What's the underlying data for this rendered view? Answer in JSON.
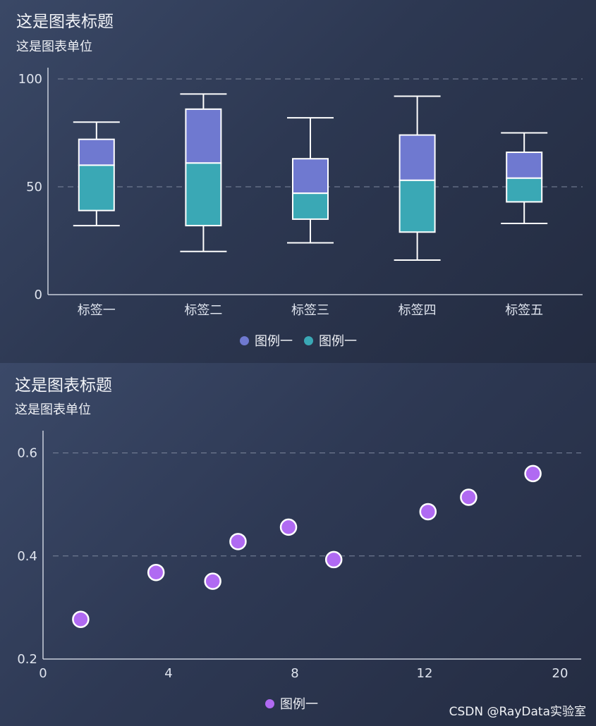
{
  "watermark": "CSDN @RayData实验室",
  "chart_data": [
    {
      "type": "boxplot",
      "title": "这是图表标题",
      "subtitle": "这是图表单位",
      "categories": [
        "标签一",
        "标签二",
        "标签三",
        "标签四",
        "标签五"
      ],
      "ylim": [
        0,
        100
      ],
      "yticks": [
        "0",
        "50",
        "100"
      ],
      "grid": true,
      "legend_position": "bottom",
      "colors": {
        "upper": "#6f79d0",
        "lower": "#3aa8b5",
        "stroke": "#ffffff"
      },
      "series": [
        {
          "name": "图例一",
          "part": "upper"
        },
        {
          "name": "图例一",
          "part": "lower"
        }
      ],
      "boxes": [
        {
          "min": 32,
          "q1": 39,
          "median": 60,
          "q3": 72,
          "max": 80
        },
        {
          "min": 20,
          "q1": 32,
          "median": 61,
          "q3": 86,
          "max": 93
        },
        {
          "min": 24,
          "q1": 35,
          "median": 47,
          "q3": 63,
          "max": 82
        },
        {
          "min": 16,
          "q1": 29,
          "median": 53,
          "q3": 74,
          "max": 92
        },
        {
          "min": 33,
          "q1": 43,
          "median": 54,
          "q3": 66,
          "max": 75
        }
      ]
    },
    {
      "type": "scatter",
      "title": "这是图表标题",
      "subtitle": "这是图表单位",
      "xticks": [
        "0",
        "4",
        "8",
        "12",
        "20"
      ],
      "yticks": [
        "0.2",
        "0.4",
        "0.6"
      ],
      "ylim": [
        0.2,
        0.62
      ],
      "grid": true,
      "legend_position": "bottom",
      "colors": {
        "point": "#b06af2",
        "stroke": "#ffffff"
      },
      "series": [
        {
          "name": "图例一",
          "points": [
            {
              "x": 1.2,
              "y": 0.277
            },
            {
              "x": 3.6,
              "y": 0.368
            },
            {
              "x": 5.4,
              "y": 0.351
            },
            {
              "x": 6.2,
              "y": 0.428
            },
            {
              "x": 7.8,
              "y": 0.456
            },
            {
              "x": 9.2,
              "y": 0.393
            },
            {
              "x": 12.2,
              "y": 0.486
            },
            {
              "x": 14.6,
              "y": 0.514
            },
            {
              "x": 18.4,
              "y": 0.56
            }
          ]
        }
      ]
    }
  ]
}
